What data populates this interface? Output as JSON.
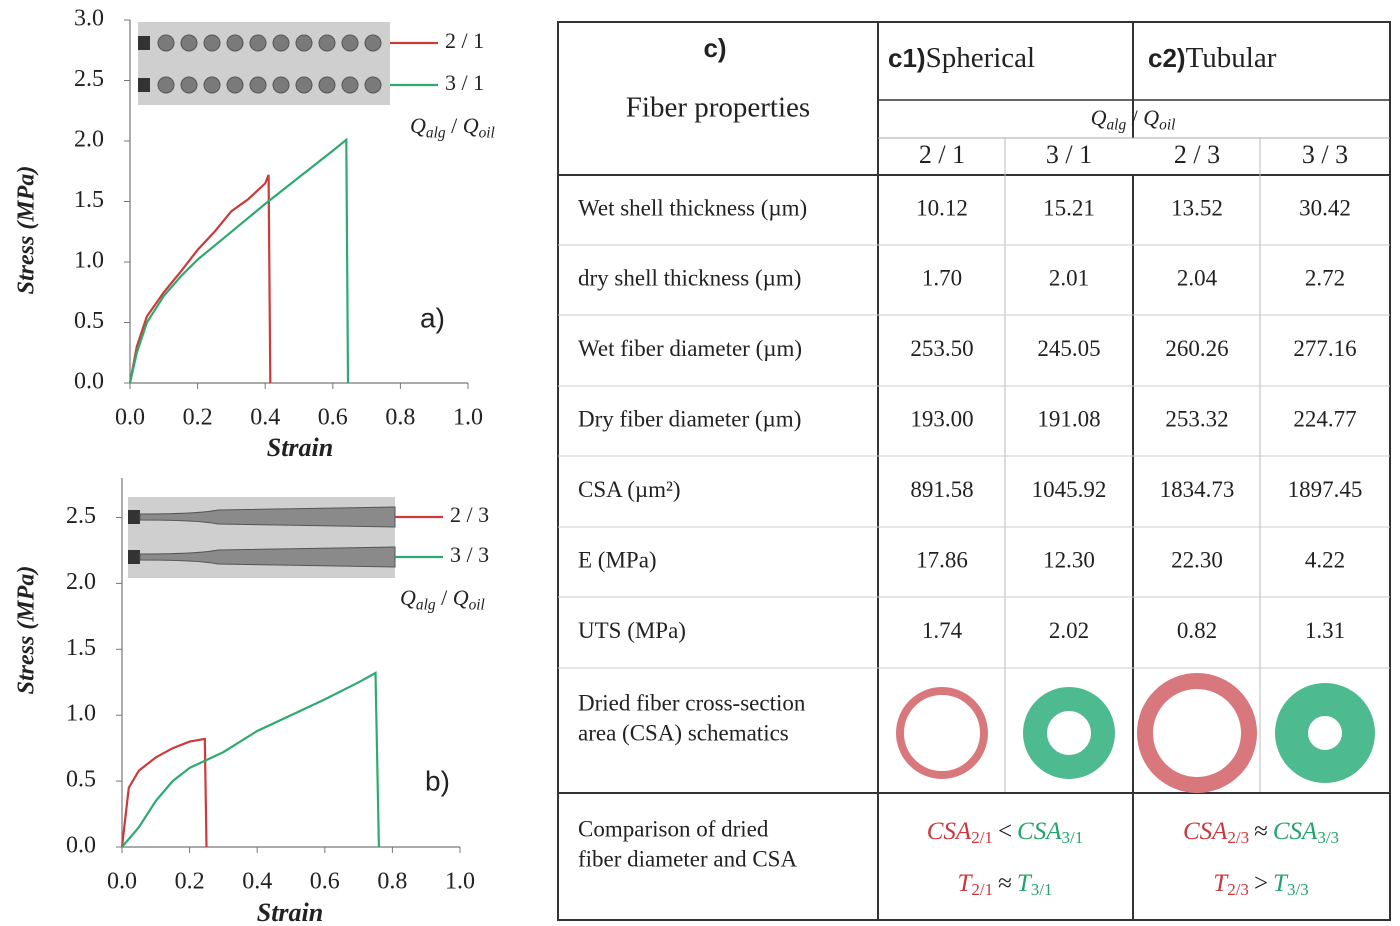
{
  "chart_data": [
    {
      "type": "line",
      "panel_label": "a)",
      "x_label": "Strain",
      "y_label": "Stress (MPa)",
      "xlim": [
        0,
        1
      ],
      "ylim": [
        0,
        3
      ],
      "xticks": [
        {
          "value": 0,
          "label": "0.0"
        },
        0.2,
        0.4,
        0.6,
        0.8,
        {
          "value": 1,
          "label": "1.0"
        }
      ],
      "yticks": [
        {
          "value": 0,
          "label": "0.0"
        },
        0.5,
        {
          "value": 1,
          "label": "1.0"
        },
        1.5,
        {
          "value": 2,
          "label": "2.0"
        },
        2.5,
        {
          "value": 3,
          "label": "3.0"
        }
      ],
      "legend_title": {
        "q1": "Q",
        "sub1": "alg",
        "sep": " / ",
        "q2": "Q",
        "sub2": "oil"
      },
      "series": [
        {
          "name": "2 / 1",
          "color": "#cc3a3a",
          "x": [
            0,
            0.02,
            0.05,
            0.1,
            0.15,
            0.2,
            0.25,
            0.3,
            0.35,
            0.4,
            0.41,
            0.415
          ],
          "values": [
            0,
            0.3,
            0.55,
            0.75,
            0.92,
            1.1,
            1.25,
            1.42,
            1.52,
            1.65,
            1.72,
            0
          ]
        },
        {
          "name": "3 / 1",
          "color": "#2eaa70",
          "x": [
            0,
            0.02,
            0.05,
            0.1,
            0.15,
            0.2,
            0.3,
            0.4,
            0.5,
            0.6,
            0.64,
            0.645
          ],
          "values": [
            0,
            0.25,
            0.5,
            0.72,
            0.88,
            1.02,
            1.25,
            1.48,
            1.7,
            1.92,
            2.01,
            0
          ]
        }
      ]
    },
    {
      "type": "line",
      "panel_label": "b)",
      "x_label": "Strain",
      "y_label": "Stress (MPa)",
      "xlim": [
        0,
        1
      ],
      "ylim": [
        0,
        2.8
      ],
      "xticks": [
        {
          "value": 0,
          "label": "0.0"
        },
        0.2,
        0.4,
        0.6,
        0.8,
        {
          "value": 1,
          "label": "1.0"
        }
      ],
      "yticks": [
        {
          "value": 0,
          "label": "0.0"
        },
        0.5,
        {
          "value": 1,
          "label": "1.0"
        },
        1.5,
        {
          "value": 2,
          "label": "2.0"
        },
        2.5
      ],
      "legend_title": {
        "q1": "Q",
        "sub1": "alg",
        "sep": " / ",
        "q2": "Q",
        "sub2": "oil"
      },
      "series": [
        {
          "name": "2 / 3",
          "color": "#cc3a3a",
          "x": [
            0,
            0.02,
            0.05,
            0.1,
            0.15,
            0.2,
            0.245,
            0.25
          ],
          "values": [
            0,
            0.45,
            0.58,
            0.68,
            0.75,
            0.8,
            0.82,
            0
          ]
        },
        {
          "name": "3 / 3",
          "color": "#2eaa70",
          "x": [
            0,
            0.05,
            0.1,
            0.15,
            0.2,
            0.3,
            0.4,
            0.5,
            0.6,
            0.7,
            0.75,
            0.76
          ],
          "values": [
            0,
            0.15,
            0.35,
            0.5,
            0.6,
            0.72,
            0.88,
            1.0,
            1.12,
            1.25,
            1.32,
            0
          ]
        }
      ]
    }
  ],
  "table": {
    "panel_label": "c)",
    "corner": "Fiber properties",
    "groups": [
      {
        "label": "c1)",
        "name": "Spherical"
      },
      {
        "label": "c2)",
        "name": "Tubular"
      }
    ],
    "quantity": {
      "q1": "Q",
      "sub1": "alg",
      "sep": " / ",
      "q2": "Q",
      "sub2": "oil"
    },
    "ratios": [
      {
        "text": "2 / 1",
        "color": "#c8383c"
      },
      {
        "text": "3 / 1",
        "color": "#23a36c"
      },
      {
        "text": "2 / 3",
        "color": "#c8383c"
      },
      {
        "text": "3 / 3",
        "color": "#23a36c"
      }
    ],
    "rows": [
      {
        "label": "Wet shell thickness (µm)",
        "values": [
          "10.12",
          "15.21",
          "13.52",
          "30.42"
        ]
      },
      {
        "label": "dry shell thickness (µm)",
        "values": [
          "1.70",
          "2.01",
          "2.04",
          "2.72"
        ]
      },
      {
        "label": "Wet fiber diameter (µm)",
        "values": [
          "253.50",
          "245.05",
          "260.26",
          "277.16"
        ]
      },
      {
        "label": "Dry fiber diameter (µm)",
        "values": [
          "193.00",
          "191.08",
          "253.32",
          "224.77"
        ]
      },
      {
        "label": "CSA (µm²)",
        "values": [
          "891.58",
          "1045.92",
          "1834.73",
          "1897.45"
        ]
      },
      {
        "label": "E (MPa)",
        "values": [
          "17.86",
          "12.30",
          "22.30",
          "4.22"
        ]
      },
      {
        "label": "UTS (MPa)",
        "values": [
          "1.74",
          "2.02",
          "0.82",
          "1.31"
        ]
      }
    ],
    "schematic_label": [
      "Dried fiber cross-section",
      "area (CSA) schematics"
    ],
    "comparison_label": [
      "Comparison of dried",
      "fiber diameter and CSA"
    ],
    "comparisons": [
      [
        {
          "a": "CSA",
          "a_sub": "2/1",
          "op": "<",
          "b": "CSA",
          "b_sub": "3/1"
        },
        {
          "a": "T",
          "a_sub": "2/1",
          "op": "≈",
          "b": "T",
          "b_sub": "3/1"
        }
      ],
      [
        {
          "a": "CSA",
          "a_sub": "2/3",
          "op": "≈",
          "b": "CSA",
          "b_sub": "3/3"
        },
        {
          "a": "T",
          "a_sub": "2/3",
          "op": ">",
          "b": "T",
          "b_sub": "3/3"
        }
      ]
    ]
  }
}
